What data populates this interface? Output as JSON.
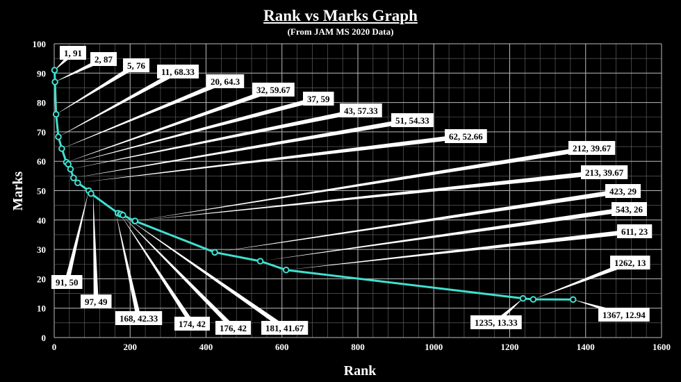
{
  "chart_data": {
    "type": "line",
    "title": "Rank vs Marks Graph",
    "subtitle": "(From JAM MS 2020 Data)",
    "xlabel": "Rank",
    "ylabel": "Marks",
    "xlim": [
      0,
      1600
    ],
    "ylim": [
      0,
      100
    ],
    "xticks": [
      "0",
      "200",
      "400",
      "600",
      "800",
      "1000",
      "1200",
      "1400",
      "1600"
    ],
    "yticks": [
      "0",
      "10",
      "20",
      "30",
      "40",
      "50",
      "60",
      "70",
      "80",
      "90",
      "100"
    ],
    "grid": true,
    "line_color": "#40e0d0",
    "series": [
      {
        "values": [
          [
            1,
            91
          ],
          [
            2,
            87
          ],
          [
            5,
            76
          ],
          [
            11,
            68.33
          ],
          [
            20,
            64.3
          ],
          [
            32,
            59.67
          ],
          [
            37,
            59
          ],
          [
            43,
            57.33
          ],
          [
            51,
            54.33
          ],
          [
            62,
            52.66
          ],
          [
            91,
            50
          ],
          [
            97,
            49
          ],
          [
            168,
            42.33
          ],
          [
            174,
            42
          ],
          [
            176,
            42
          ],
          [
            181,
            41.67
          ],
          [
            212,
            39.67
          ],
          [
            213,
            39.67
          ],
          [
            423,
            29
          ],
          [
            543,
            26
          ],
          [
            611,
            23
          ],
          [
            1235,
            13.33
          ],
          [
            1262,
            13
          ],
          [
            1367,
            12.94
          ]
        ]
      }
    ],
    "labels": [
      "1, 91",
      "2, 87",
      "5, 76",
      "11, 68.33",
      "20, 64.3",
      "32, 59.67",
      "37, 59",
      "43, 57.33",
      "51, 54.33",
      "62, 52.66",
      "91, 50",
      "97, 49",
      "168, 42.33",
      "174, 42",
      "176, 42",
      "181, 41.67",
      "212, 39.67",
      "213, 39.67",
      "423, 29",
      "543, 26",
      "611, 23",
      "1235, 13.33",
      "1262, 13",
      "1367, 12.94"
    ]
  }
}
